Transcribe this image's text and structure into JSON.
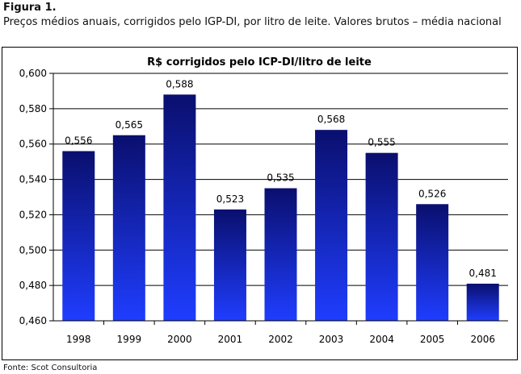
{
  "figure": {
    "label": "Figura 1.",
    "caption": "Preços médios anuais, corrigidos pelo IGP-DI, por litro de leite. Valores brutos – média nacional",
    "source": "Fonte: Scot Consultoria"
  },
  "chart_data": {
    "type": "bar",
    "title": "R$ corrigidos pelo ICP-DI/litro de leite",
    "xlabel": "",
    "ylabel": "",
    "categories": [
      "1998",
      "1999",
      "2000",
      "2001",
      "2002",
      "2003",
      "2004",
      "2005",
      "2006"
    ],
    "values": [
      0.556,
      0.565,
      0.588,
      0.523,
      0.535,
      0.568,
      0.555,
      0.526,
      0.481
    ],
    "value_labels": [
      "0,556",
      "0,565",
      "0,588",
      "0,523",
      "0,535",
      "0,568",
      "0,555",
      "0,526",
      "0,481"
    ],
    "ylim": [
      0.46,
      0.6
    ],
    "yticks": [
      0.46,
      0.48,
      0.5,
      0.52,
      0.54,
      0.56,
      0.58,
      0.6
    ],
    "ytick_labels": [
      "0,460",
      "0,480",
      "0,500",
      "0,520",
      "0,540",
      "0,560",
      "0,580",
      "0,600"
    ],
    "grid": true,
    "legend": "none",
    "colors": {
      "bar_top": "#0a0f6e",
      "bar_bottom": "#1f3dff",
      "grid": "#000000"
    }
  }
}
